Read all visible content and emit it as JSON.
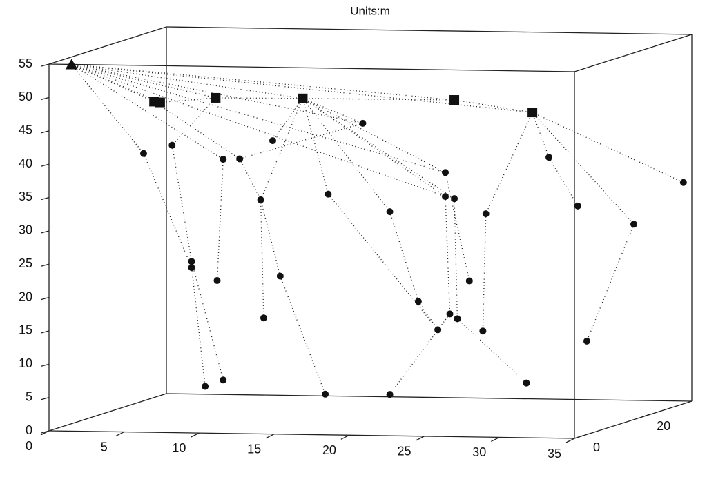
{
  "chart_data": {
    "type": "scatter3d",
    "title": "Units:m",
    "xlim": [
      0,
      35
    ],
    "ylim": [
      0,
      35
    ],
    "zlim": [
      0,
      55
    ],
    "xticks": [
      0,
      5,
      10,
      15,
      20,
      25,
      30,
      35
    ],
    "yticks": [
      0,
      20
    ],
    "zticks": [
      0,
      5,
      10,
      15,
      20,
      25,
      30,
      35,
      40,
      45,
      50,
      55
    ],
    "series": [
      {
        "marker": "triangle",
        "color": "#111111",
        "x": [
          1.5
        ],
        "y": [
          0
        ],
        "z": [
          55
        ]
      },
      {
        "marker": "square",
        "color": "#111111",
        "x": [
          7.0,
          7.4,
          11.1,
          16.9,
          27.0,
          32.2
        ],
        "y": [
          0,
          0,
          0,
          0,
          0,
          0
        ],
        "z": [
          49.6,
          49.5,
          50.3,
          50.4,
          50.5,
          48.8
        ]
      },
      {
        "marker": "circle",
        "color": "#111111",
        "x": [
          6.3,
          8.2,
          9.5,
          9.5,
          10.4,
          11.6,
          11.2,
          11.6,
          12.7,
          14.9,
          14.1,
          14.3,
          15.4,
          18.4,
          18.6,
          20.9,
          22.7,
          22.7,
          24.6,
          25.9,
          26.4,
          26.4,
          27.0,
          26.7,
          27.2,
          28.0,
          29.1,
          28.9,
          31.8,
          33.3,
          35,
          35,
          35,
          35
        ],
        "y": [
          0,
          0,
          0,
          0,
          0,
          0,
          0,
          0,
          0,
          0,
          0,
          0,
          0,
          0,
          0,
          0,
          0,
          0,
          0,
          0,
          0,
          0,
          0,
          0,
          0,
          0,
          0,
          0,
          0,
          0,
          1.0,
          3.7,
          17.7,
          32.5
        ],
        "z": [
          41.8,
          43.1,
          25.7,
          24.8,
          7.0,
          8.0,
          22.9,
          41.1,
          41.2,
          44.0,
          35.1,
          17.4,
          23.7,
          6.1,
          36.1,
          46.8,
          33.6,
          6.2,
          20.2,
          16.0,
          39.6,
          36.0,
          35.7,
          18.4,
          17.7,
          23.4,
          33.5,
          15.9,
          8.2,
          42.1,
          34.7,
          14.0,
          29.3,
          33.2
        ]
      }
    ],
    "links": [
      [
        0,
        0,
        1,
        0
      ],
      [
        0,
        0,
        1,
        1
      ],
      [
        0,
        0,
        1,
        2
      ],
      [
        0,
        0,
        1,
        3
      ],
      [
        0,
        0,
        1,
        4
      ],
      [
        0,
        0,
        1,
        5
      ],
      [
        0,
        0,
        2,
        0
      ],
      [
        0,
        0,
        2,
        7
      ],
      [
        0,
        0,
        2,
        15
      ],
      [
        0,
        0,
        2,
        20
      ],
      [
        0,
        0,
        2,
        21
      ],
      [
        1,
        1,
        1,
        2
      ],
      [
        1,
        2,
        1,
        3
      ],
      [
        1,
        3,
        1,
        4
      ],
      [
        1,
        4,
        1,
        5
      ],
      [
        2,
        0,
        2,
        3
      ],
      [
        2,
        3,
        2,
        4
      ],
      [
        1,
        2,
        2,
        1
      ],
      [
        2,
        1,
        2,
        2
      ],
      [
        2,
        2,
        2,
        5
      ],
      [
        2,
        7,
        2,
        6
      ],
      [
        1,
        0,
        2,
        8
      ],
      [
        2,
        8,
        2,
        10
      ],
      [
        2,
        10,
        2,
        11
      ],
      [
        2,
        8,
        2,
        15
      ],
      [
        1,
        3,
        2,
        10
      ],
      [
        2,
        10,
        2,
        12
      ],
      [
        2,
        12,
        2,
        13
      ],
      [
        1,
        3,
        2,
        9
      ],
      [
        1,
        3,
        2,
        14
      ],
      [
        2,
        14,
        2,
        19
      ],
      [
        1,
        3,
        2,
        16
      ],
      [
        2,
        16,
        2,
        18
      ],
      [
        2,
        18,
        2,
        19
      ],
      [
        2,
        17,
        2,
        23
      ],
      [
        1,
        3,
        2,
        20
      ],
      [
        1,
        3,
        2,
        21
      ],
      [
        1,
        3,
        2,
        22
      ],
      [
        2,
        21,
        2,
        23
      ],
      [
        2,
        22,
        2,
        24
      ],
      [
        2,
        20,
        2,
        25
      ],
      [
        2,
        24,
        2,
        28
      ],
      [
        1,
        5,
        2,
        26
      ],
      [
        2,
        26,
        2,
        27
      ],
      [
        1,
        5,
        2,
        29
      ],
      [
        2,
        29,
        2,
        30
      ],
      [
        1,
        5,
        2,
        32
      ],
      [
        2,
        32,
        2,
        31
      ],
      [
        1,
        5,
        2,
        33
      ],
      [
        1,
        3,
        2,
        15
      ]
    ]
  }
}
